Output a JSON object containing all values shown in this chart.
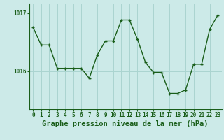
{
  "hours": [
    0,
    1,
    2,
    3,
    4,
    5,
    6,
    7,
    8,
    9,
    10,
    11,
    12,
    13,
    14,
    15,
    16,
    17,
    18,
    19,
    20,
    21,
    22,
    23
  ],
  "pressure": [
    1016.75,
    1016.45,
    1016.45,
    1016.05,
    1016.05,
    1016.05,
    1016.05,
    1015.88,
    1016.28,
    1016.52,
    1016.52,
    1016.88,
    1016.88,
    1016.55,
    1016.15,
    1015.98,
    1015.98,
    1015.62,
    1015.62,
    1015.68,
    1016.12,
    1016.12,
    1016.72,
    1016.96
  ],
  "line_color": "#1a5e1a",
  "marker_color": "#1a5e1a",
  "bg_color": "#cceae8",
  "grid_color": "#aad4d0",
  "xlabel": "Graphe pression niveau de la mer (hPa)",
  "ylabel_ticks": [
    1016,
    1017
  ],
  "ylim": [
    1015.35,
    1017.15
  ],
  "xlim": [
    -0.5,
    23.5
  ],
  "xlabel_fontsize": 7.5,
  "tick_fontsize": 5.5
}
